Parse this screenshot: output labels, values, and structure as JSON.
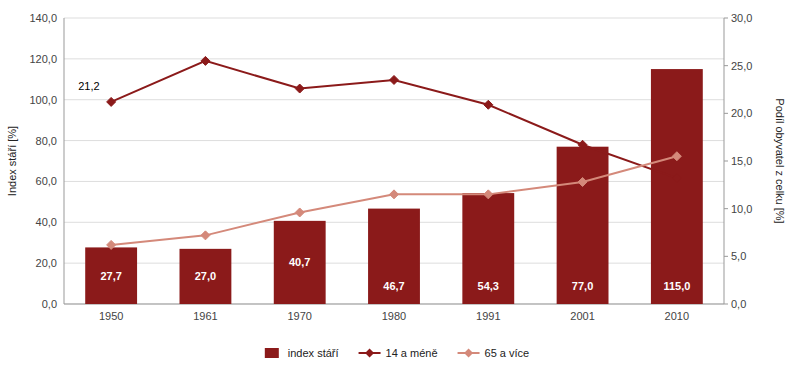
{
  "chart_data": {
    "type": "bar",
    "categories": [
      "1950",
      "1961",
      "1970",
      "1980",
      "1991",
      "2001",
      "2010"
    ],
    "series": [
      {
        "name": "index stáří",
        "type": "bar",
        "color": "#8B1A1A",
        "values": [
          27.7,
          27.0,
          40.7,
          46.7,
          54.3,
          77.0,
          115.0
        ],
        "value_labels": [
          "27,7",
          "27,0",
          "40,7",
          "46,7",
          "54,3",
          "77,0",
          "115,0"
        ],
        "data_labels": true
      },
      {
        "name": "14 a méně",
        "type": "line",
        "color": "#8B1A1A",
        "marker": "diamond",
        "axis": "y2",
        "values": [
          21.2,
          25.5,
          22.6,
          23.5,
          20.9,
          16.7,
          13.2
        ]
      },
      {
        "name": "65 a více",
        "type": "line",
        "color": "#D4897A",
        "marker": "diamond",
        "axis": "y2",
        "values": [
          6.2,
          7.2,
          9.6,
          11.5,
          11.5,
          12.8,
          15.5
        ]
      }
    ],
    "ylabel": "Index stáří [%]",
    "y2label": "Podíl obyvatel z celku [%]",
    "ylim": [
      0,
      140
    ],
    "yticks": [
      {
        "value": 0,
        "label": "0,0"
      },
      {
        "value": 20,
        "label": "20,0"
      },
      {
        "value": 40,
        "label": "40,0"
      },
      {
        "value": 60,
        "label": "60,0"
      },
      {
        "value": 80,
        "label": "80,0"
      },
      {
        "value": 100,
        "label": "100,0"
      },
      {
        "value": 120,
        "label": "120,0"
      },
      {
        "value": 140,
        "label": "140,0"
      }
    ],
    "y2lim": [
      0,
      30
    ],
    "y2ticks": [
      {
        "value": 0,
        "label": "0,0"
      },
      {
        "value": 5,
        "label": "5,0"
      },
      {
        "value": 10,
        "label": "10,0"
      },
      {
        "value": 15,
        "label": "15,0"
      },
      {
        "value": 20,
        "label": "20,0"
      },
      {
        "value": 25,
        "label": "25,0"
      },
      {
        "value": 30,
        "label": "30,0"
      }
    ],
    "annotations": [
      {
        "text": "21,2",
        "x": "1950",
        "y": 21.2,
        "axis": "y2"
      }
    ],
    "grid": true,
    "legend": "bottom"
  }
}
